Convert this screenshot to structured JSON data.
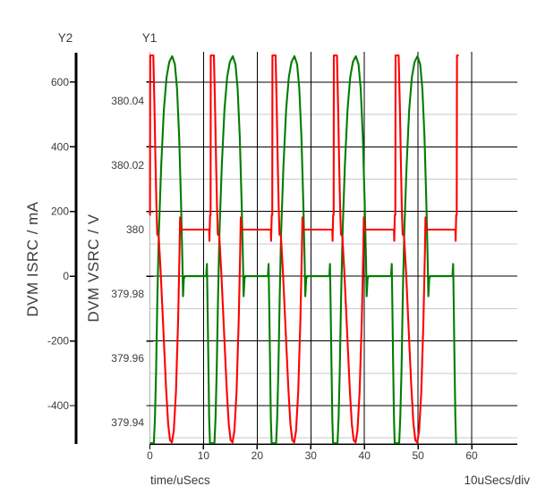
{
  "chart_data": {
    "type": "line",
    "title": "",
    "x": {
      "label": "time/uSecs",
      "div_label": "10uSecs/div",
      "unit": "uSecs",
      "ticks": [
        0,
        10,
        20,
        30,
        40,
        50,
        60
      ],
      "range": [
        0,
        68.5
      ],
      "us_per_div": 10
    },
    "y1": {
      "title": "Y1",
      "label": "DVM VSRC / V",
      "unit": "V",
      "ticks": [
        380.04,
        380.02,
        380,
        379.98,
        379.96,
        379.94
      ],
      "range": [
        379.9333,
        380.0553
      ]
    },
    "y2": {
      "title": "Y2",
      "label": "DVM ISRC / mA",
      "unit": "mA",
      "ticks": [
        600,
        400,
        200,
        0,
        -200,
        -400
      ],
      "range": [
        -518.8,
        693.6
      ]
    },
    "grid": {
      "h_major_axis": "y2",
      "h_major": [
        600,
        400,
        200,
        0,
        -200,
        -400
      ],
      "h_minor": [
        500,
        300,
        100,
        -100,
        -300,
        -500
      ],
      "v_major": [
        10,
        20,
        30,
        40,
        50,
        60
      ]
    },
    "series": [
      {
        "name": "DVM ISRC",
        "axis": "y2",
        "unit": "mA",
        "color": "#007d00",
        "flat_value": 0,
        "peak_mA": 680,
        "min_mA": -516,
        "t_end": 57.32,
        "burst_starts": [
          0.05,
          11.35,
          22.85,
          34.3,
          45.8,
          57.25
        ],
        "cycle": [
          [
            -0.85,
            0
          ],
          [
            -0.72,
            38
          ],
          [
            -0.62,
            -70
          ],
          [
            -0.46,
            -260
          ],
          [
            -0.3,
            -440
          ],
          [
            -0.16,
            -516
          ],
          [
            0.68,
            -516
          ],
          [
            0.88,
            -440
          ],
          [
            1.1,
            -295
          ],
          [
            1.36,
            -55
          ],
          [
            1.62,
            135
          ],
          [
            2.05,
            340
          ],
          [
            2.55,
            515
          ],
          [
            3.05,
            615
          ],
          [
            3.55,
            662
          ],
          [
            4.1,
            680
          ],
          [
            4.6,
            655
          ],
          [
            5.0,
            580
          ],
          [
            5.4,
            430
          ],
          [
            5.75,
            225
          ],
          [
            6.0,
            45
          ],
          [
            6.12,
            -62
          ],
          [
            6.28,
            -8
          ],
          [
            6.45,
            0
          ],
          [
            10.4,
            0
          ]
        ]
      },
      {
        "name": "DVM VSRC",
        "axis": "y1",
        "unit": "V",
        "color": "#ff0000",
        "flat_value": 380,
        "peak_V": 380.0542,
        "min_V": 379.9338,
        "t_end": 57.58,
        "burst_starts": [
          0.05,
          11.35,
          22.85,
          34.3,
          45.8,
          57.25
        ],
        "cycle": [
          [
            -0.3,
            380.0
          ],
          [
            -0.25,
            379.9965
          ],
          [
            -0.14,
            380.0045
          ],
          [
            -0.04,
            380.0045
          ],
          [
            0.0,
            380.0542
          ],
          [
            0.58,
            380.0542
          ],
          [
            0.8,
            380.038
          ],
          [
            1.0,
            380.02
          ],
          [
            1.18,
            380.006
          ],
          [
            1.32,
            379.9985
          ],
          [
            1.58,
            379.998
          ],
          [
            1.95,
            379.987
          ],
          [
            2.45,
            379.969
          ],
          [
            2.95,
            379.951
          ],
          [
            3.35,
            379.9395
          ],
          [
            3.7,
            379.9345
          ],
          [
            4.05,
            379.9338
          ],
          [
            4.4,
            379.9375
          ],
          [
            4.8,
            379.9495
          ],
          [
            5.2,
            379.9715
          ],
          [
            5.48,
            379.9935
          ],
          [
            5.58,
            380.0038
          ],
          [
            5.72,
            380.0
          ],
          [
            10.9,
            380.0
          ]
        ]
      }
    ]
  },
  "colors": {
    "vsrc_trace": "#ff0000",
    "isrc_trace": "#007d00",
    "grid_major": "#000000",
    "grid_minor": "#c8c8c8",
    "y1_axis_line": "#b5b5b5",
    "y2_axis_line": "#000000",
    "text": "#3b3b3b",
    "background": "#ffffff"
  }
}
